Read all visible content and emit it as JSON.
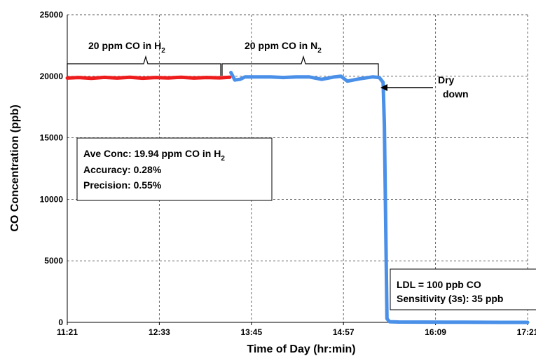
{
  "chart_data": {
    "type": "line",
    "xlabel": "Time of Day (hr:min)",
    "ylabel": "CO Concentration (ppb)",
    "ylim": [
      0,
      25000
    ],
    "xlim_minutes_of_day": [
      681,
      1041
    ],
    "x_ticks": [
      "11:21",
      "12:33",
      "13:45",
      "14:57",
      "16:09",
      "17:21"
    ],
    "y_ticks": [
      "0",
      "5000",
      "10000",
      "15000",
      "20000",
      "25000"
    ],
    "grid": true,
    "series": [
      {
        "color": "#ee1c1c",
        "x": [
          "11:21",
          "11:30",
          "11:40",
          "11:50",
          "12:00",
          "12:10",
          "12:20",
          "12:30",
          "12:40",
          "12:50",
          "13:00",
          "13:10",
          "13:20",
          "13:28"
        ],
        "y": [
          19850,
          19900,
          19830,
          19910,
          19850,
          19920,
          19840,
          19900,
          19860,
          19920,
          19850,
          19900,
          19870,
          19920
        ]
      },
      {
        "color": "#4a90e8",
        "x": [
          "13:29",
          "13:32",
          "13:36",
          "13:40",
          "13:50",
          "14:00",
          "14:10",
          "14:20",
          "14:30",
          "14:40",
          "14:50",
          "14:55",
          "15:00",
          "15:10",
          "15:20",
          "15:25",
          "15:28",
          "15:29",
          "15:31",
          "15:33",
          "15:40",
          "16:00",
          "16:30",
          "17:00",
          "17:21"
        ],
        "y": [
          20300,
          19700,
          19750,
          19950,
          19950,
          19950,
          19900,
          19950,
          19950,
          19750,
          19950,
          20000,
          19600,
          19800,
          19950,
          19900,
          19500,
          16000,
          300,
          50,
          30,
          20,
          10,
          0,
          0
        ]
      }
    ],
    "annotations": {
      "h2_label": {
        "text": "20 ppm CO in H",
        "sub": "2"
      },
      "n2_label": {
        "text": "20 ppm CO in N",
        "sub": "2"
      },
      "dry_down": [
        "Dry",
        "down"
      ],
      "stats_box": {
        "line1": "Ave Conc: 19.94 ppm CO in H",
        "line1_sub": "2",
        "line2": "Accuracy: 0.28%",
        "line3": "Precision: 0.55%"
      },
      "ldl_box": {
        "line1": "LDL = 100 ppb CO",
        "line2": "Sensitivity (3s):  35 ppb"
      }
    }
  }
}
